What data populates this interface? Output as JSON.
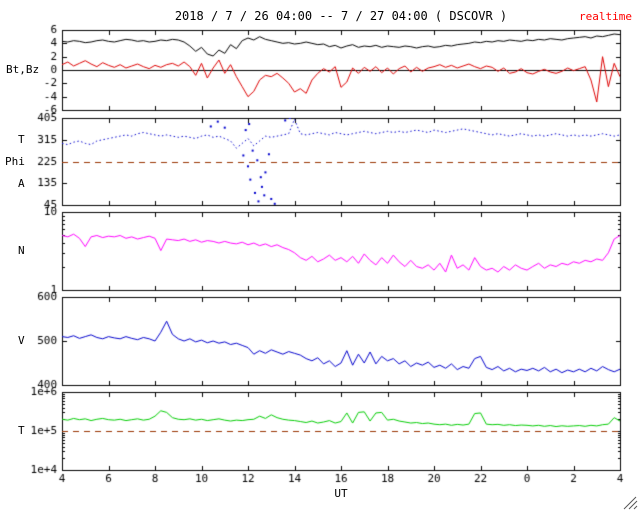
{
  "header": {
    "title": "2018 / 7 / 26  04:00 -- 7 / 27  04:00 ( DSCOVR )",
    "realtime": "realtime",
    "realtime_color": "#ff0000"
  },
  "labels": {
    "panel1": "Bt,Bz",
    "panel2_t": "T",
    "panel2_phi": "Phi",
    "panel2_a": "A",
    "panel3": "N",
    "panel4": "V",
    "panel5": "T",
    "x": "UT"
  },
  "colors": {
    "axis": "#000000",
    "dashed_threshold": "#993300",
    "bt": "#000000",
    "bz": "#dd0000",
    "phi": "#0000cc",
    "density": "#ff00ff",
    "velocity": "#0000cc",
    "temperature": "#00cc00"
  },
  "x_axis": {
    "label": "UT",
    "range": [
      4,
      28
    ],
    "tick_values": [
      4,
      6,
      8,
      10,
      12,
      14,
      16,
      18,
      20,
      22,
      24,
      26,
      28
    ],
    "tick_labels": [
      "4",
      "6",
      "8",
      "10",
      "12",
      "14",
      "16",
      "18",
      "20",
      "22",
      "0",
      "2",
      "4"
    ]
  },
  "chart_data": [
    {
      "type": "line",
      "ylabel": "Bt,Bz",
      "scale": "linear",
      "ylim": [
        -6,
        6
      ],
      "ytick_values": [
        6,
        4,
        2,
        0,
        -2,
        -4,
        -6
      ],
      "ytick_labels": [
        "6",
        "4",
        "2",
        "0",
        "-2",
        "-4",
        "-6"
      ],
      "hlines": [
        {
          "y": 0,
          "color": "#000000",
          "dash": false
        }
      ],
      "x_start": 4,
      "x_step": 0.25,
      "series": [
        {
          "name": "Bt",
          "color": "#000000",
          "values": [
            4.3,
            4.2,
            4.4,
            4.3,
            4.1,
            4.2,
            4.4,
            4.5,
            4.3,
            4.2,
            4.4,
            4.6,
            4.5,
            4.3,
            4.4,
            4.2,
            4.3,
            4.5,
            4.4,
            4.6,
            4.5,
            4.2,
            3.6,
            2.8,
            3.4,
            2.4,
            2.1,
            3.0,
            2.5,
            3.8,
            3.2,
            4.4,
            4.8,
            4.5,
            5.0,
            4.6,
            4.4,
            4.2,
            4.0,
            4.1,
            3.9,
            4.0,
            4.2,
            4.0,
            3.8,
            3.9,
            3.5,
            3.7,
            3.3,
            3.6,
            3.8,
            3.4,
            3.6,
            3.5,
            3.7,
            3.4,
            3.6,
            3.5,
            3.4,
            3.6,
            3.5,
            3.3,
            3.5,
            3.6,
            3.4,
            3.5,
            3.7,
            3.6,
            3.8,
            3.9,
            4.0,
            4.2,
            4.1,
            4.3,
            4.2,
            4.4,
            4.3,
            4.5,
            4.4,
            4.3,
            4.5,
            4.4,
            4.6,
            4.5,
            4.7,
            4.6,
            4.5,
            4.7,
            4.8,
            4.9,
            5.0,
            4.8,
            5.1,
            5.0,
            5.2,
            5.4,
            5.3
          ]
        },
        {
          "name": "Bz",
          "color": "#dd0000",
          "values": [
            0.8,
            1.2,
            0.6,
            1.0,
            1.4,
            0.9,
            0.5,
            1.1,
            0.7,
            0.4,
            0.8,
            0.3,
            0.6,
            0.9,
            0.5,
            0.2,
            0.7,
            0.4,
            0.8,
            1.0,
            0.6,
            1.2,
            0.5,
            -0.8,
            1.0,
            -1.2,
            0.3,
            1.5,
            -0.5,
            0.8,
            -1.0,
            -2.5,
            -4.0,
            -3.2,
            -1.5,
            -0.8,
            -1.0,
            -0.5,
            -1.2,
            -2.0,
            -3.3,
            -2.8,
            -3.5,
            -1.5,
            -0.5,
            0.2,
            -0.3,
            0.5,
            -2.6,
            -1.8,
            0.3,
            -0.5,
            0.4,
            -0.2,
            0.5,
            -0.4,
            0.3,
            -0.6,
            0.2,
            0.6,
            -0.3,
            0.4,
            -0.2,
            0.3,
            0.5,
            0.8,
            0.4,
            0.7,
            0.3,
            0.6,
            0.9,
            0.5,
            0.2,
            0.6,
            0.4,
            -0.2,
            0.3,
            -0.5,
            -0.3,
            0.2,
            -0.4,
            -0.6,
            -0.2,
            0.1,
            -0.3,
            -0.5,
            -0.2,
            0.3,
            -0.1,
            0.2,
            0.5,
            -1.5,
            -4.8,
            2.0,
            -2.5,
            1.0,
            -1.0
          ]
        }
      ]
    },
    {
      "type": "line",
      "ylabel": "T Phi A",
      "scale": "linear",
      "ylim": [
        45,
        405
      ],
      "ytick_values": [
        405,
        315,
        225,
        135,
        45
      ],
      "ytick_labels": [
        "405",
        "315",
        "225",
        "135",
        "45"
      ],
      "hlines": [
        {
          "y": 225,
          "color": "#993300",
          "dash": true
        }
      ],
      "x_start": 4,
      "x_step": 0.25,
      "series": [
        {
          "name": "Phi",
          "color": "#0000cc",
          "style": "dotted",
          "values": [
            300,
            295,
            305,
            310,
            300,
            295,
            310,
            315,
            320,
            325,
            330,
            335,
            330,
            340,
            345,
            340,
            335,
            330,
            335,
            330,
            325,
            330,
            325,
            320,
            330,
            335,
            325,
            330,
            320,
            310,
            280,
            300,
            320,
            290,
            310,
            330,
            325,
            330,
            335,
            340,
            400,
            340,
            335,
            340,
            345,
            340,
            335,
            345,
            340,
            335,
            340,
            345,
            350,
            345,
            340,
            345,
            350,
            345,
            350,
            345,
            350,
            355,
            350,
            345,
            355,
            350,
            345,
            350,
            355,
            360,
            355,
            350,
            345,
            340,
            335,
            340,
            335,
            330,
            335,
            340,
            335,
            330,
            335,
            330,
            335,
            340,
            335,
            330,
            335,
            330,
            335,
            330,
            335,
            340,
            335,
            330,
            335
          ]
        },
        {
          "name": "Phi-outliers",
          "color": "#0000cc",
          "type": "scatter",
          "points": [
            [
              11.8,
              250
            ],
            [
              12.0,
              205
            ],
            [
              12.1,
              150
            ],
            [
              12.3,
              95
            ],
            [
              12.45,
              60
            ],
            [
              12.6,
              120
            ],
            [
              12.75,
              180
            ],
            [
              13.0,
              70
            ],
            [
              13.15,
              50
            ],
            [
              12.2,
              270
            ],
            [
              12.4,
              230
            ],
            [
              12.9,
              255
            ],
            [
              11.9,
              355
            ],
            [
              12.05,
              380
            ],
            [
              10.4,
              370
            ],
            [
              10.7,
              390
            ],
            [
              11.0,
              365
            ],
            [
              13.6,
              395
            ],
            [
              13.8,
              405
            ],
            [
              12.55,
              160
            ],
            [
              12.7,
              85
            ]
          ]
        }
      ]
    },
    {
      "type": "line",
      "ylabel": "N",
      "scale": "log",
      "ylim": [
        1,
        10
      ],
      "ytick_values": [
        10,
        1
      ],
      "ytick_labels": [
        "10",
        "1"
      ],
      "hlines": [],
      "x_start": 4,
      "x_step": 0.25,
      "series": [
        {
          "name": "N",
          "color": "#ff00ff",
          "values": [
            5.0,
            4.8,
            5.2,
            4.6,
            3.6,
            4.8,
            5.0,
            4.7,
            4.9,
            4.8,
            5.0,
            4.6,
            4.8,
            4.5,
            4.7,
            4.9,
            4.6,
            3.2,
            4.5,
            4.4,
            4.3,
            4.5,
            4.2,
            4.4,
            4.1,
            4.3,
            4.2,
            4.0,
            4.2,
            4.0,
            3.9,
            4.1,
            3.8,
            4.0,
            3.7,
            3.9,
            3.6,
            3.8,
            3.5,
            3.3,
            3.0,
            2.6,
            2.4,
            2.7,
            2.3,
            2.5,
            2.8,
            2.4,
            2.6,
            2.3,
            2.7,
            2.2,
            2.9,
            2.4,
            2.1,
            2.6,
            2.2,
            2.8,
            2.3,
            2.0,
            2.4,
            2.0,
            1.9,
            2.1,
            1.8,
            2.2,
            1.7,
            2.8,
            1.9,
            2.1,
            1.8,
            2.6,
            2.0,
            1.8,
            1.9,
            1.7,
            2.0,
            1.8,
            2.1,
            1.9,
            1.8,
            2.0,
            2.2,
            1.9,
            2.1,
            2.0,
            2.2,
            2.1,
            2.3,
            2.2,
            2.4,
            2.3,
            2.5,
            2.4,
            3.0,
            4.5,
            5.0
          ]
        }
      ]
    },
    {
      "type": "line",
      "ylabel": "V",
      "scale": "linear",
      "ylim": [
        400,
        600
      ],
      "ytick_values": [
        600,
        500,
        400
      ],
      "ytick_labels": [
        "600",
        "500",
        "400"
      ],
      "hlines": [],
      "x_start": 4,
      "x_step": 0.25,
      "series": [
        {
          "name": "V",
          "color": "#0000cc",
          "values": [
            510,
            508,
            512,
            506,
            510,
            514,
            508,
            505,
            510,
            507,
            505,
            510,
            506,
            503,
            508,
            505,
            500,
            520,
            545,
            515,
            505,
            500,
            505,
            498,
            502,
            496,
            500,
            495,
            498,
            492,
            495,
            490,
            485,
            470,
            478,
            472,
            480,
            475,
            470,
            476,
            472,
            468,
            460,
            455,
            462,
            448,
            455,
            442,
            450,
            478,
            445,
            470,
            450,
            475,
            448,
            465,
            455,
            460,
            448,
            455,
            442,
            450,
            445,
            452,
            440,
            445,
            438,
            448,
            435,
            442,
            438,
            460,
            465,
            440,
            435,
            442,
            432,
            438,
            430,
            436,
            433,
            438,
            432,
            440,
            430,
            436,
            428,
            434,
            430,
            436,
            430,
            438,
            432,
            442,
            435,
            430,
            436
          ]
        }
      ]
    },
    {
      "type": "line",
      "ylabel": "T",
      "scale": "log",
      "ylim": [
        10000,
        1000000
      ],
      "ytick_values": [
        1000000,
        100000,
        10000
      ],
      "ytick_labels": [
        "1e+6",
        "1e+5",
        "1e+4"
      ],
      "hlines": [
        {
          "y": 100000,
          "color": "#993300",
          "dash": true
        }
      ],
      "x_start": 4,
      "x_step": 0.25,
      "series": [
        {
          "name": "T",
          "color": "#00cc00",
          "values": [
            200000,
            190000,
            210000,
            195000,
            205000,
            185000,
            200000,
            210000,
            195000,
            190000,
            200000,
            185000,
            195000,
            205000,
            190000,
            200000,
            240000,
            330000,
            300000,
            220000,
            200000,
            195000,
            205000,
            190000,
            200000,
            185000,
            195000,
            205000,
            190000,
            180000,
            190000,
            185000,
            195000,
            200000,
            240000,
            210000,
            260000,
            220000,
            200000,
            190000,
            185000,
            175000,
            165000,
            180000,
            160000,
            170000,
            185000,
            160000,
            175000,
            290000,
            160000,
            300000,
            310000,
            180000,
            290000,
            300000,
            190000,
            200000,
            180000,
            170000,
            160000,
            165000,
            155000,
            160000,
            150000,
            145000,
            150000,
            140000,
            148000,
            142000,
            150000,
            280000,
            290000,
            150000,
            145000,
            148000,
            140000,
            145000,
            138000,
            142000,
            140000,
            135000,
            140000,
            132000,
            138000,
            130000,
            136000,
            132000,
            135000,
            138000,
            132000,
            140000,
            135000,
            145000,
            150000,
            220000,
            180000
          ]
        }
      ]
    }
  ]
}
